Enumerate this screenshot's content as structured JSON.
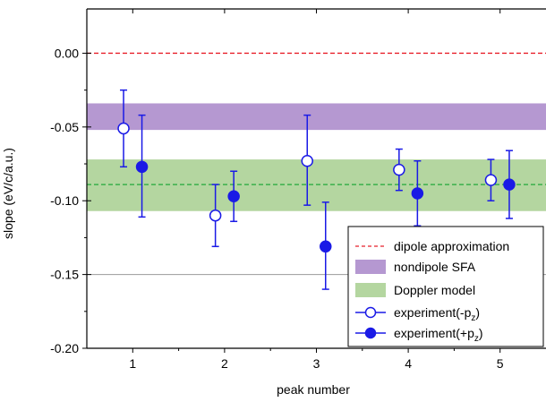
{
  "chart_data": {
    "type": "scatter",
    "title": "",
    "xlabel": "peak number",
    "ylabel": "slope (eV/c/a.u.)",
    "xlim": [
      0.5,
      5.5
    ],
    "ylim": [
      -0.2,
      0.03
    ],
    "xticks": [
      1,
      2,
      3,
      4,
      5
    ],
    "xtick_labels": [
      "1",
      "2",
      "3",
      "4",
      "5"
    ],
    "yticks": [
      0.0,
      -0.05,
      -0.1,
      -0.15,
      -0.2
    ],
    "ytick_labels": [
      "0.00",
      "-0.05",
      "-0.10",
      "-0.15",
      "-0.20"
    ],
    "reference_lines": [
      {
        "name": "dipole approximation",
        "y": 0.0,
        "style": "dashed",
        "color": "#e8202a"
      },
      {
        "name": "",
        "y": -0.15,
        "style": "solid",
        "color": "#9a9a9a"
      }
    ],
    "bands": [
      {
        "name": "nondipole SFA",
        "y_low": -0.052,
        "y_high": -0.034,
        "color": "#b598d1"
      },
      {
        "name": "Doppler model",
        "y_low": -0.107,
        "y_high": -0.072,
        "color": "#b4d6a0",
        "center": -0.089,
        "center_color": "#22a83a"
      }
    ],
    "series": [
      {
        "name": "experiment(-p_z)",
        "marker": "open-circle",
        "color": "#1a1ae6",
        "points": [
          {
            "x": 0.9,
            "y": -0.051,
            "err_low": -0.077,
            "err_high": -0.025
          },
          {
            "x": 1.9,
            "y": -0.11,
            "err_low": -0.131,
            "err_high": -0.089
          },
          {
            "x": 2.9,
            "y": -0.073,
            "err_low": -0.103,
            "err_high": -0.042
          },
          {
            "x": 3.9,
            "y": -0.079,
            "err_low": -0.093,
            "err_high": -0.065
          },
          {
            "x": 4.9,
            "y": -0.086,
            "err_low": -0.1,
            "err_high": -0.072
          }
        ]
      },
      {
        "name": "experiment(+p_z)",
        "marker": "filled-circle",
        "color": "#1a1ae6",
        "points": [
          {
            "x": 1.1,
            "y": -0.077,
            "err_low": -0.111,
            "err_high": -0.042
          },
          {
            "x": 2.1,
            "y": -0.097,
            "err_low": -0.114,
            "err_high": -0.08
          },
          {
            "x": 3.1,
            "y": -0.131,
            "err_low": -0.16,
            "err_high": -0.101
          },
          {
            "x": 4.1,
            "y": -0.095,
            "err_low": -0.117,
            "err_high": -0.073
          },
          {
            "x": 5.1,
            "y": -0.089,
            "err_low": -0.112,
            "err_high": -0.066
          }
        ]
      }
    ],
    "legend": {
      "position": "bottom-right",
      "entries": [
        {
          "label": "dipole approximation",
          "kind": "dashed-line",
          "color": "#e8202a"
        },
        {
          "label": "nondipole SFA",
          "kind": "band",
          "color": "#b598d1"
        },
        {
          "label": "Doppler model",
          "kind": "band",
          "color": "#b4d6a0"
        },
        {
          "label_main": "experiment(-p",
          "label_sub": "z",
          "label_end": ")",
          "kind": "open-circle",
          "color": "#1a1ae6"
        },
        {
          "label_main": "experiment(+p",
          "label_sub": "z",
          "label_end": ")",
          "kind": "filled-circle",
          "color": "#1a1ae6"
        }
      ]
    }
  }
}
